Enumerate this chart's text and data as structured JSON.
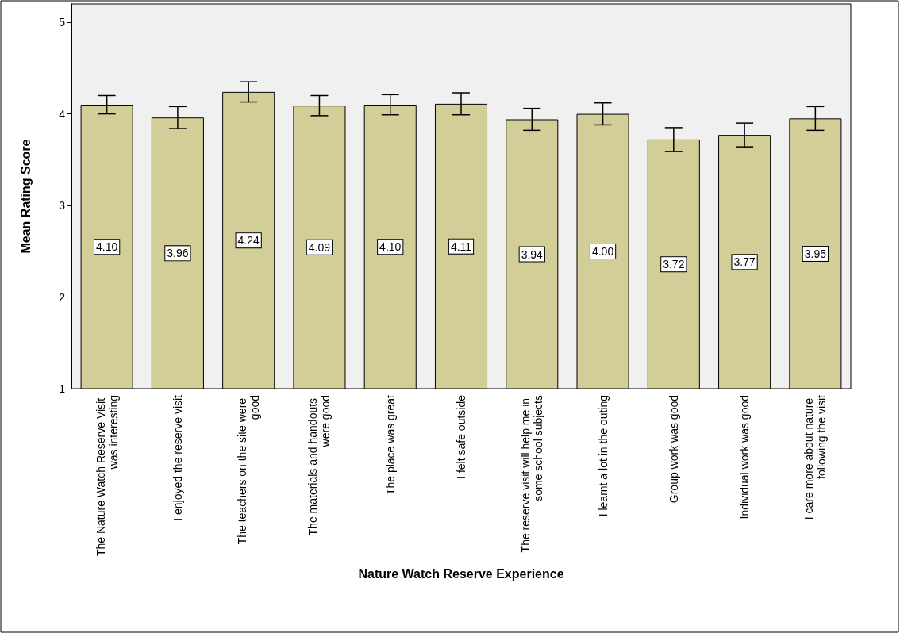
{
  "chart_data": {
    "type": "bar",
    "xlabel": "Nature Watch Reserve Experience",
    "ylabel": "Mean Rating Score",
    "categories": [
      "The Nature Watch Reserve Visit was interesting",
      "I enjoyed the reserve visit",
      "The teachers on the site were good",
      "The materials and handouts were good",
      "The place was great",
      "I felt safe outside",
      "The reserve visit will help me in some school subjects",
      "I learnt a lot in the outing",
      "Group work was good",
      "Individual work was good",
      "I care more about nature following the visit"
    ],
    "values": [
      4.1,
      3.96,
      4.24,
      4.09,
      4.1,
      4.11,
      3.94,
      4.0,
      3.72,
      3.77,
      3.95
    ],
    "value_labels": [
      "4.10",
      "3.96",
      "4.24",
      "4.09",
      "4.10",
      "4.11",
      "3.94",
      "4.00",
      "3.72",
      "3.77",
      "3.95"
    ],
    "errors": [
      0.1,
      0.12,
      0.11,
      0.11,
      0.11,
      0.12,
      0.12,
      0.12,
      0.13,
      0.13,
      0.13
    ],
    "color": "#d3ce97",
    "ylim": [
      1,
      5.2
    ],
    "yticks": [
      1,
      2,
      3,
      4,
      5
    ],
    "grid": false
  }
}
